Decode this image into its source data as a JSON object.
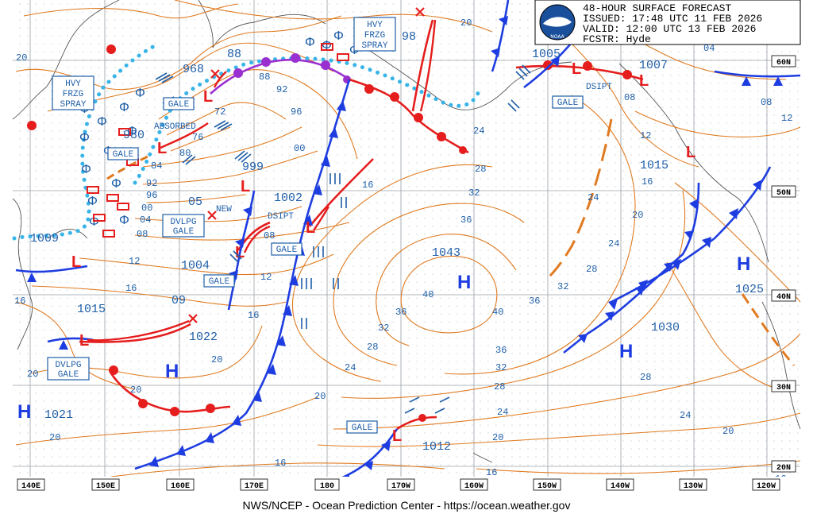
{
  "header": {
    "title": "48-HOUR SURFACE FORECAST",
    "issued": "ISSUED: 17:48 UTC 11 FEB 2026",
    "valid": "VALID:  12:00 UTC 13 FEB 2026",
    "forecaster": "FCSTR:  Hyde",
    "logo_text": "NOAA"
  },
  "footer": "NWS/NCEP - Ocean Prediction Center - https://ocean.weather.gov",
  "lon_labels": [
    "140E",
    "150E",
    "160E",
    "170E",
    "180",
    "170W",
    "160W",
    "150W",
    "140W",
    "130W",
    "120W"
  ],
  "lat_labels": [
    "60N",
    "50N",
    "40N",
    "30N",
    "20N"
  ],
  "warnings": {
    "hvy_frzg_1": [
      "HVY",
      "FRZG",
      "SPRAY"
    ],
    "hvy_frzg_2": [
      "HVY",
      "FRZG",
      "SPRAY"
    ],
    "gale": "GALE",
    "dvlpg_gale": [
      "DVLPG",
      "GALE"
    ]
  },
  "notes": {
    "absorbed": "ABSORBED",
    "dsipt": "DSIPT",
    "new": "NEW"
  },
  "pressure_labels": {
    "p968": "968",
    "p980": "980",
    "p999": "999",
    "p1002": "1002",
    "p1004": "1004",
    "p1009": "1009",
    "p1015w": "1015",
    "p1022": "1022",
    "p1021": "1021",
    "p1012": "1012",
    "p1043": "1043",
    "p1005": "1005",
    "p1007": "1007",
    "p1015e": "1015",
    "p1030": "1030",
    "p1025": "1025",
    "p88": "88",
    "p98": "98",
    "p05": "05",
    "p09": "09"
  },
  "isobar_labels": {
    "i20a": "20",
    "i92": "92",
    "i96": "96",
    "i00": "00",
    "i76": "76",
    "i72": "72",
    "i80": "80",
    "i84": "84",
    "i92b": "92",
    "i96b": "96",
    "i00b": "00",
    "i04": "04",
    "i08": "08",
    "i12": "12",
    "i16": "16",
    "i16b": "16",
    "i20b": "20",
    "i20c": "20",
    "i24": "24",
    "i28": "28",
    "i32": "32",
    "i36": "36",
    "i40": "40",
    "i36b": "36",
    "i32b": "32",
    "i28b": "28",
    "i24b": "24",
    "i20d": "20",
    "i16c": "16",
    "i16d": "16",
    "i40b": "40",
    "i36c": "36",
    "i32c": "32",
    "i28c": "28",
    "i24c": "24",
    "i20e": "20",
    "i16e": "16",
    "i20f": "20",
    "i24d": "24",
    "i28d": "28",
    "i32d": "32",
    "i36d": "36",
    "i24e": "24",
    "i28e": "28",
    "i32e": "32",
    "i20g": "20",
    "i16f": "16",
    "i12b": "12",
    "i08b": "08",
    "i08c": "08",
    "i12c": "12",
    "i04b": "04",
    "i20h": "20",
    "i24f": "24",
    "i28f": "28",
    "i16g": "16",
    "i20i": "20",
    "i88": "88",
    "i20j": "20",
    "i24g": "24",
    "i16h": "16",
    "i12d": "12",
    "i08d": "08"
  },
  "centers": {
    "high": "H",
    "low": "L"
  },
  "colors": {
    "isobar": "#e07a20",
    "cold_front": "#1e3de0",
    "warm_front": "#e51d1d",
    "occluded_front": "#9b30d0",
    "freezing_spray": "#38b4e8",
    "label_blue": "#1f5fa8",
    "grid": "#9aa0a8"
  }
}
